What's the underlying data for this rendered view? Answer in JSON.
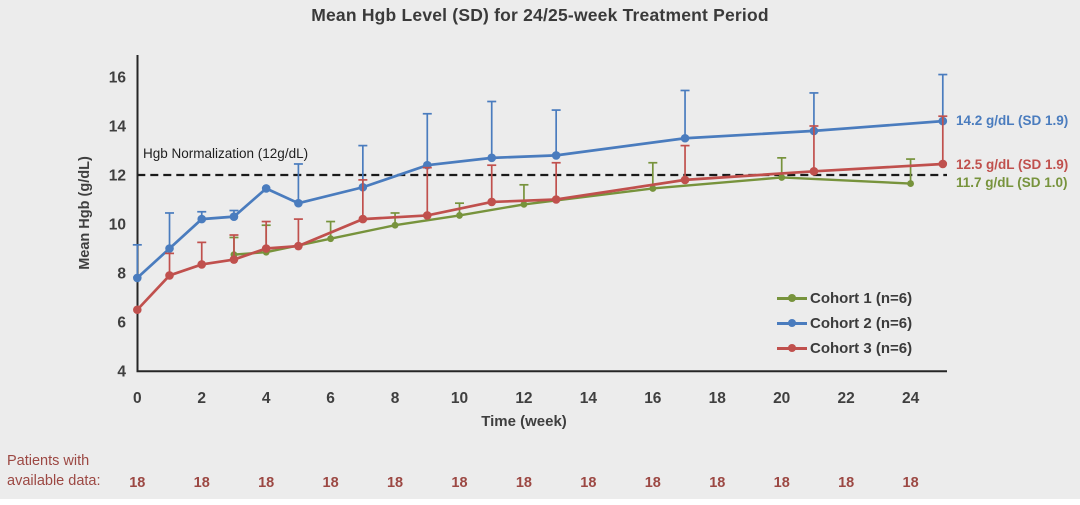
{
  "title": "Mean Hgb Level (SD) for 24/25-week Treatment Period",
  "colors": {
    "background": "#ececec",
    "title": "#3a3a3a",
    "text": "#3f3f3f",
    "axis": "#262626",
    "ref": "#1a1a1a"
  },
  "chart_data": {
    "type": "line",
    "title": "Mean Hgb Level (SD) for 24/25-week Treatment Period",
    "xlabel": "Time (week)",
    "ylabel": "Mean Hgb (g/dL)",
    "xlim": [
      0,
      25.3
    ],
    "ylim": [
      4,
      16.5
    ],
    "xticks": [
      0,
      2,
      4,
      6,
      8,
      10,
      12,
      14,
      16,
      18,
      20,
      22,
      24
    ],
    "yticks": [
      4,
      6,
      8,
      10,
      12,
      14,
      16
    ],
    "grid": false,
    "legend_position": "inside-lower-right",
    "error_bars": "upper +1 SD",
    "reference_line": {
      "value": 12,
      "label": "Hgb Normalization (12g/dL)",
      "style": "dashed"
    },
    "series": [
      {
        "name": "Cohort 1 (n=6)",
        "color": "#77933c",
        "points_format": [
          "week",
          "mean_hgb",
          "sd_whisker_top"
        ],
        "points": [
          [
            3,
            8.75,
            9.45
          ],
          [
            4,
            8.85,
            9.95
          ],
          [
            6,
            9.4,
            10.1
          ],
          [
            8,
            9.95,
            10.45
          ],
          [
            10,
            10.35,
            10.85
          ],
          [
            12,
            10.8,
            11.6
          ],
          [
            16,
            11.45,
            12.5
          ],
          [
            20,
            11.9,
            12.7
          ],
          [
            24,
            11.65,
            12.65
          ]
        ]
      },
      {
        "name": "Cohort 2 (n=6)",
        "color": "#4a7cbe",
        "points_format": [
          "week",
          "mean_hgb",
          "sd_whisker_top"
        ],
        "points": [
          [
            0,
            7.8,
            9.15
          ],
          [
            1,
            9.0,
            10.45
          ],
          [
            2,
            10.2,
            10.5
          ],
          [
            3,
            10.3,
            10.55
          ],
          [
            4,
            11.45,
            null
          ],
          [
            5,
            10.85,
            12.45
          ],
          [
            7,
            11.5,
            13.2
          ],
          [
            9,
            12.4,
            14.5
          ],
          [
            11,
            12.7,
            15.0
          ],
          [
            13,
            12.8,
            14.65
          ],
          [
            17,
            13.5,
            15.45
          ],
          [
            21,
            13.8,
            15.35
          ],
          [
            25,
            14.2,
            16.1
          ]
        ]
      },
      {
        "name": "Cohort 3 (n=6)",
        "color": "#c0504d",
        "points_format": [
          "week",
          "mean_hgb",
          "sd_whisker_top"
        ],
        "points": [
          [
            0,
            6.5,
            null
          ],
          [
            1,
            7.9,
            8.8
          ],
          [
            2,
            8.35,
            9.25
          ],
          [
            3,
            8.55,
            9.55
          ],
          [
            4,
            9.0,
            10.1
          ],
          [
            5,
            9.1,
            10.2
          ],
          [
            7,
            10.2,
            11.8
          ],
          [
            9,
            10.35,
            12.3
          ],
          [
            11,
            10.9,
            12.4
          ],
          [
            13,
            11.0,
            12.5
          ],
          [
            17,
            11.8,
            13.2
          ],
          [
            21,
            12.15,
            14.0
          ],
          [
            25,
            12.45,
            14.4
          ]
        ]
      }
    ],
    "end_labels": [
      {
        "text": "14.2 g/dL (SD 1.9)",
        "color": "#4a7cbe",
        "at_value": 14.2
      },
      {
        "text": "12.5 g/dL (SD 1.9)",
        "color": "#c0504d",
        "at_value": 12.42
      },
      {
        "text": "11.7 g/dL (SD 1.0)",
        "color": "#77933c",
        "at_value": 11.66
      }
    ]
  },
  "patients": {
    "label_line1": "Patients with",
    "label_line2": "available data:",
    "color": "#9c4843",
    "counts": [
      18,
      18,
      18,
      18,
      18,
      18,
      18,
      18,
      18,
      18,
      18,
      18,
      18
    ]
  }
}
